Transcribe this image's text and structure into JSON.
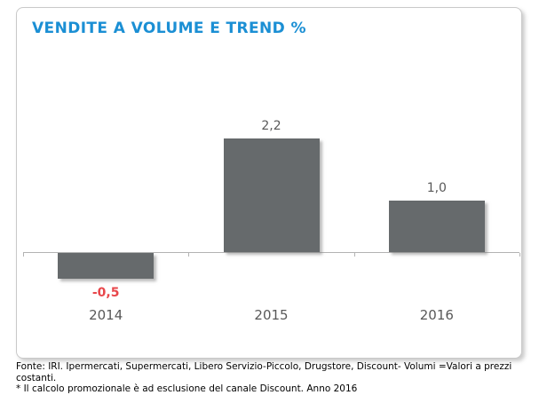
{
  "card": {
    "title": "VENDITE A VOLUME E TREND %"
  },
  "colors": {
    "title": "#1b8fd4",
    "bar": "#666a6c",
    "axis": "#b3b3b3",
    "positive_label": "#595959",
    "negative_label": "#e8474b"
  },
  "chart_data": {
    "type": "bar",
    "title": "VENDITE A VOLUME E TREND %",
    "categories": [
      "2014",
      "2015",
      "2016"
    ],
    "values": [
      -0.5,
      2.2,
      1.0
    ],
    "value_labels": [
      "-0,5",
      "2,2",
      "1,0"
    ],
    "xlabel": "",
    "ylabel": "",
    "ylim": [
      -1,
      3
    ],
    "grid": false,
    "legend": false,
    "bar_color": "#666a6c",
    "notes": "negative value label shown in red, positive in gray; comma decimal separator (Italian)"
  },
  "footer": {
    "line1": "Fonte: IRI. Ipermercati, Supermercati, Libero Servizio-Piccolo, Drugstore, Discount-  Volumi =Valori a prezzi costanti.",
    "line2": "* Il calcolo promozionale è ad esclusione del canale Discount. Anno 2016"
  }
}
